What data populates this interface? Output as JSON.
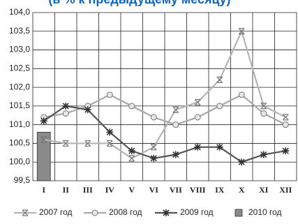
{
  "chart_data": {
    "type": "line",
    "title": "(в % к предыдущему месяцу)",
    "categories": [
      "I",
      "II",
      "III",
      "IV",
      "V",
      "VI",
      "VII",
      "VIII",
      "IX",
      "X",
      "XI",
      "XII"
    ],
    "ylim": [
      99.5,
      104.0
    ],
    "yticks": [
      {
        "value": 99.5,
        "label": "99,5"
      },
      {
        "value": 100,
        "label": "100,0"
      },
      {
        "value": 100.5,
        "label": "100,5"
      },
      {
        "value": 101,
        "label": "101,0"
      },
      {
        "value": 101.5,
        "label": "101,5"
      },
      {
        "value": 102,
        "label": "102,0"
      },
      {
        "value": 102.5,
        "label": "102,5"
      },
      {
        "value": 103,
        "label": "103,0"
      },
      {
        "value": 103.5,
        "label": "103,5"
      },
      {
        "value": 104,
        "label": "104,0"
      }
    ],
    "grid": true,
    "series": [
      {
        "name": "2007 год",
        "type": "line",
        "marker": "x",
        "color": "#b4b4b4",
        "values": [
          100.6,
          100.5,
          100.5,
          100.5,
          100.1,
          100.4,
          101.4,
          101.6,
          102.2,
          103.5,
          101.5,
          101.2
        ]
      },
      {
        "name": "2008 год",
        "type": "line",
        "marker": "circle",
        "color": "#a8a8a8",
        "values": [
          101.2,
          101.3,
          101.5,
          101.8,
          101.5,
          101.2,
          101.0,
          101.2,
          101.5,
          101.8,
          101.3,
          101.0
        ]
      },
      {
        "name": "2009 год",
        "type": "line",
        "marker": "star",
        "color": "#555555",
        "values": [
          101.1,
          101.5,
          101.4,
          100.8,
          100.3,
          100.1,
          100.2,
          100.4,
          100.4,
          100.0,
          100.2,
          100.3
        ]
      },
      {
        "name": "2010 год",
        "type": "bar",
        "marker": "square",
        "color": "#8a8a8a",
        "values": [
          100.8,
          null,
          null,
          null,
          null,
          null,
          null,
          null,
          null,
          null,
          null,
          null
        ]
      }
    ]
  }
}
